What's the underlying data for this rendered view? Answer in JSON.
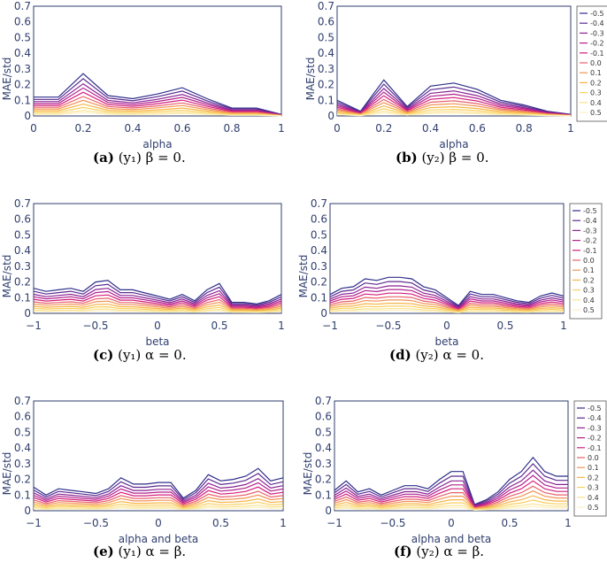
{
  "legend_entries": [
    "-0.5",
    "-0.4",
    "-0.3",
    "-0.2",
    "-0.1",
    "0.0",
    "0.1",
    "0.2",
    "0.3",
    "0.4",
    "0.5"
  ],
  "series_colors": [
    "#2e2f8a",
    "#5b2a91",
    "#8a2394",
    "#b0208e",
    "#d41e7e",
    "#e8606a",
    "#f39257",
    "#f7b548",
    "#f9cf60",
    "#fae28d",
    "#fcf0c0"
  ],
  "chart_data": [
    {
      "id": "a",
      "type": "line",
      "title": "",
      "caption_label": "(a)",
      "caption_text": "(y₁) β = 0.",
      "xlabel": "alpha",
      "ylabel": "MAE/std",
      "xlim": [
        0,
        1
      ],
      "ylim": [
        0,
        0.7
      ],
      "xticks": [
        "0",
        "0.2",
        "0.4",
        "0.6",
        "0.8",
        "1"
      ],
      "xtick_values": [
        0,
        0.2,
        0.4,
        0.6,
        0.8,
        1
      ],
      "yticks": [
        "0",
        "0.1",
        "0.2",
        "0.3",
        "0.4",
        "0.5",
        "0.6",
        "0.7"
      ],
      "ytick_values": [
        0,
        0.1,
        0.2,
        0.3,
        0.4,
        0.5,
        0.6,
        0.7
      ],
      "show_legend": false,
      "x": [
        0,
        0.1,
        0.2,
        0.3,
        0.4,
        0.5,
        0.6,
        0.7,
        0.8,
        0.9,
        1.0
      ],
      "base": [
        0.12,
        0.12,
        0.27,
        0.13,
        0.11,
        0.14,
        0.18,
        0.11,
        0.05,
        0.05,
        0.01
      ]
    },
    {
      "id": "b",
      "type": "line",
      "title": "",
      "caption_label": "(b)",
      "caption_text": "(y₂) β = 0.",
      "xlabel": "alpha",
      "ylabel": "MAE/std",
      "xlim": [
        0,
        1
      ],
      "ylim": [
        0,
        0.7
      ],
      "xticks": [
        "0",
        "0.2",
        "0.4",
        "0.6",
        "0.8",
        "1"
      ],
      "xtick_values": [
        0,
        0.2,
        0.4,
        0.6,
        0.8,
        1
      ],
      "yticks": [
        "0",
        "0.1",
        "0.2",
        "0.3",
        "0.4",
        "0.5",
        "0.6",
        "0.7"
      ],
      "ytick_values": [
        0,
        0.1,
        0.2,
        0.3,
        0.4,
        0.5,
        0.6,
        0.7
      ],
      "show_legend": true,
      "x": [
        0,
        0.1,
        0.2,
        0.3,
        0.4,
        0.5,
        0.6,
        0.7,
        0.8,
        0.9,
        1.0
      ],
      "base": [
        0.1,
        0.03,
        0.23,
        0.06,
        0.19,
        0.21,
        0.17,
        0.1,
        0.07,
        0.03,
        0.01
      ]
    },
    {
      "id": "c",
      "type": "line",
      "title": "",
      "caption_label": "(c)",
      "caption_text": "(y₁) α = 0.",
      "xlabel": "beta",
      "ylabel": "MAE/std",
      "xlim": [
        -1,
        1
      ],
      "ylim": [
        0,
        0.7
      ],
      "xticks": [
        "−1",
        "−0.5",
        "0",
        "0.5",
        "1"
      ],
      "xtick_values": [
        -1,
        -0.5,
        0,
        0.5,
        1
      ],
      "yticks": [
        "0",
        "0.1",
        "0.2",
        "0.3",
        "0.4",
        "0.5",
        "0.6",
        "0.7"
      ],
      "ytick_values": [
        0,
        0.1,
        0.2,
        0.3,
        0.4,
        0.5,
        0.6,
        0.7
      ],
      "show_legend": false,
      "x": [
        -1.0,
        -0.9,
        -0.8,
        -0.7,
        -0.6,
        -0.5,
        -0.4,
        -0.3,
        -0.2,
        -0.1,
        0.0,
        0.1,
        0.2,
        0.3,
        0.4,
        0.5,
        0.6,
        0.7,
        0.8,
        0.9,
        1.0
      ],
      "base": [
        0.16,
        0.14,
        0.15,
        0.16,
        0.14,
        0.2,
        0.21,
        0.15,
        0.15,
        0.13,
        0.11,
        0.09,
        0.12,
        0.08,
        0.15,
        0.19,
        0.07,
        0.07,
        0.06,
        0.08,
        0.12
      ]
    },
    {
      "id": "d",
      "type": "line",
      "title": "",
      "caption_label": "(d)",
      "caption_text": "(y₂) α = 0.",
      "xlabel": "beta",
      "ylabel": "MAE/std",
      "xlim": [
        -1,
        1
      ],
      "ylim": [
        0,
        0.7
      ],
      "xticks": [
        "−1",
        "−0.5",
        "0",
        "0.5",
        "1"
      ],
      "xtick_values": [
        -1,
        -0.5,
        0,
        0.5,
        1
      ],
      "yticks": [
        "0",
        "0.1",
        "0.2",
        "0.3",
        "0.4",
        "0.5",
        "0.6",
        "0.7"
      ],
      "ytick_values": [
        0,
        0.1,
        0.2,
        0.3,
        0.4,
        0.5,
        0.6,
        0.7
      ],
      "show_legend": true,
      "x": [
        -1.0,
        -0.9,
        -0.8,
        -0.7,
        -0.6,
        -0.5,
        -0.4,
        -0.3,
        -0.2,
        -0.1,
        0.0,
        0.1,
        0.2,
        0.3,
        0.4,
        0.5,
        0.6,
        0.7,
        0.8,
        0.9,
        1.0
      ],
      "base": [
        0.12,
        0.16,
        0.17,
        0.22,
        0.21,
        0.23,
        0.23,
        0.22,
        0.17,
        0.15,
        0.1,
        0.05,
        0.14,
        0.12,
        0.12,
        0.1,
        0.08,
        0.07,
        0.11,
        0.13,
        0.11
      ]
    },
    {
      "id": "e",
      "type": "line",
      "title": "",
      "caption_label": "(e)",
      "caption_text": "(y₁) α = β.",
      "xlabel": "alpha and beta",
      "ylabel": "MAE/std",
      "xlim": [
        -1,
        1
      ],
      "ylim": [
        0,
        0.7
      ],
      "xticks": [
        "−1",
        "−0.5",
        "0",
        "0.5",
        "1"
      ],
      "xtick_values": [
        -1,
        -0.5,
        0,
        0.5,
        1
      ],
      "yticks": [
        "0",
        "0.1",
        "0.2",
        "0.3",
        "0.4",
        "0.5",
        "0.6",
        "0.7"
      ],
      "ytick_values": [
        0,
        0.1,
        0.2,
        0.3,
        0.4,
        0.5,
        0.6,
        0.7
      ],
      "show_legend": false,
      "x": [
        -1.0,
        -0.9,
        -0.8,
        -0.7,
        -0.6,
        -0.5,
        -0.4,
        -0.3,
        -0.2,
        -0.1,
        0.0,
        0.1,
        0.2,
        0.3,
        0.4,
        0.5,
        0.6,
        0.7,
        0.8,
        0.9,
        1.0
      ],
      "base": [
        0.15,
        0.1,
        0.14,
        0.13,
        0.12,
        0.11,
        0.14,
        0.21,
        0.17,
        0.17,
        0.18,
        0.18,
        0.08,
        0.13,
        0.23,
        0.19,
        0.2,
        0.22,
        0.27,
        0.19,
        0.21
      ]
    },
    {
      "id": "f",
      "type": "line",
      "title": "",
      "caption_label": "(f)",
      "caption_text": "(y₂) α = β.",
      "xlabel": "alpha and beta",
      "ylabel": "MAE/std",
      "xlim": [
        -1,
        1
      ],
      "ylim": [
        0,
        0.7
      ],
      "xticks": [
        "−1",
        "−0.5",
        "0",
        "0.5",
        "1"
      ],
      "xtick_values": [
        -1,
        -0.5,
        0,
        0.5,
        1
      ],
      "yticks": [
        "0",
        "0.1",
        "0.2",
        "0.3",
        "0.4",
        "0.5",
        "0.6",
        "0.7"
      ],
      "ytick_values": [
        0,
        0.1,
        0.2,
        0.3,
        0.4,
        0.5,
        0.6,
        0.7
      ],
      "show_legend": true,
      "x": [
        -1.0,
        -0.9,
        -0.8,
        -0.7,
        -0.6,
        -0.5,
        -0.4,
        -0.3,
        -0.2,
        -0.1,
        0.0,
        0.1,
        0.2,
        0.3,
        0.4,
        0.5,
        0.6,
        0.7,
        0.8,
        0.9,
        1.0
      ],
      "base": [
        0.13,
        0.19,
        0.12,
        0.14,
        0.1,
        0.13,
        0.16,
        0.16,
        0.14,
        0.2,
        0.25,
        0.25,
        0.04,
        0.07,
        0.12,
        0.2,
        0.25,
        0.34,
        0.25,
        0.22,
        0.22
      ]
    }
  ]
}
